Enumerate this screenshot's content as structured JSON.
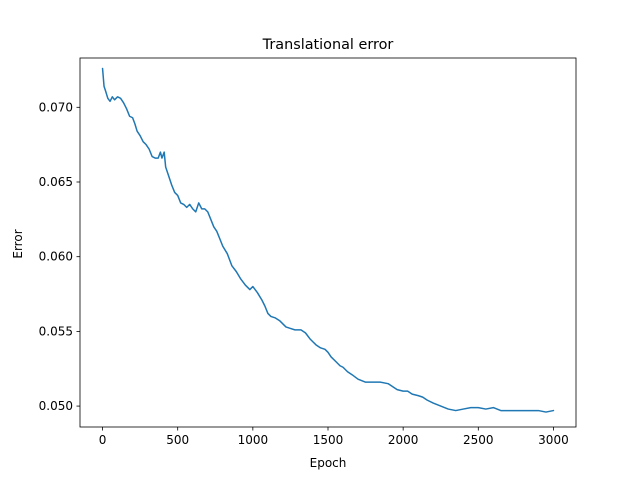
{
  "chart_data": {
    "type": "line",
    "title": "Translational error",
    "xlabel": "Epoch",
    "ylabel": "Error",
    "xlim": [
      -150,
      3150
    ],
    "ylim": [
      0.0486,
      0.0733
    ],
    "xticks": [
      0,
      500,
      1000,
      1500,
      2000,
      2500,
      3000
    ],
    "xtick_labels": [
      "0",
      "500",
      "1000",
      "1500",
      "2000",
      "2500",
      "3000"
    ],
    "yticks": [
      0.05,
      0.055,
      0.06,
      0.065,
      0.07
    ],
    "ytick_labels": [
      "0.050",
      "0.055",
      "0.060",
      "0.065",
      "0.070"
    ],
    "grid": false,
    "legend": false,
    "series": [
      {
        "color": "#1f77b4",
        "x": [
          0,
          10,
          20,
          35,
          50,
          65,
          80,
          100,
          120,
          140,
          160,
          180,
          200,
          215,
          230,
          250,
          270,
          290,
          310,
          330,
          350,
          370,
          385,
          395,
          410,
          420,
          440,
          460,
          480,
          500,
          520,
          540,
          560,
          580,
          600,
          620,
          640,
          660,
          680,
          700,
          720,
          740,
          760,
          780,
          800,
          830,
          860,
          890,
          920,
          950,
          980,
          1000,
          1030,
          1060,
          1080,
          1100,
          1120,
          1150,
          1180,
          1200,
          1220,
          1250,
          1280,
          1320,
          1350,
          1380,
          1400,
          1420,
          1450,
          1480,
          1500,
          1520,
          1550,
          1580,
          1600,
          1630,
          1660,
          1700,
          1750,
          1800,
          1850,
          1900,
          1930,
          1960,
          2000,
          2030,
          2060,
          2100,
          2130,
          2160,
          2200,
          2250,
          2300,
          2350,
          2400,
          2450,
          2500,
          2550,
          2600,
          2650,
          2700,
          2750,
          2800,
          2850,
          2900,
          2950,
          3000
        ],
        "values": [
          0.0726,
          0.0714,
          0.0711,
          0.0706,
          0.0704,
          0.0707,
          0.0705,
          0.0707,
          0.0706,
          0.0703,
          0.0699,
          0.0694,
          0.0693,
          0.0689,
          0.0684,
          0.0681,
          0.0677,
          0.0675,
          0.0672,
          0.0667,
          0.0666,
          0.0666,
          0.067,
          0.0666,
          0.067,
          0.066,
          0.0654,
          0.0648,
          0.0643,
          0.0641,
          0.0636,
          0.0635,
          0.0633,
          0.0635,
          0.0632,
          0.063,
          0.0636,
          0.0632,
          0.0632,
          0.063,
          0.0625,
          0.062,
          0.0617,
          0.0612,
          0.0607,
          0.0602,
          0.0594,
          0.059,
          0.0585,
          0.0581,
          0.0578,
          0.058,
          0.0576,
          0.0571,
          0.0567,
          0.0562,
          0.056,
          0.0559,
          0.0557,
          0.0555,
          0.0553,
          0.0552,
          0.0551,
          0.0551,
          0.0549,
          0.0545,
          0.0543,
          0.0541,
          0.0539,
          0.0538,
          0.0536,
          0.0533,
          0.053,
          0.0527,
          0.0526,
          0.0523,
          0.0521,
          0.0518,
          0.0516,
          0.0516,
          0.0516,
          0.0515,
          0.0513,
          0.0511,
          0.051,
          0.051,
          0.0508,
          0.0507,
          0.0506,
          0.0504,
          0.0502,
          0.05,
          0.0498,
          0.0497,
          0.0498,
          0.0499,
          0.0499,
          0.0498,
          0.0499,
          0.0497,
          0.0497,
          0.0497,
          0.0497,
          0.0497,
          0.0497,
          0.0496,
          0.0497
        ]
      }
    ]
  }
}
